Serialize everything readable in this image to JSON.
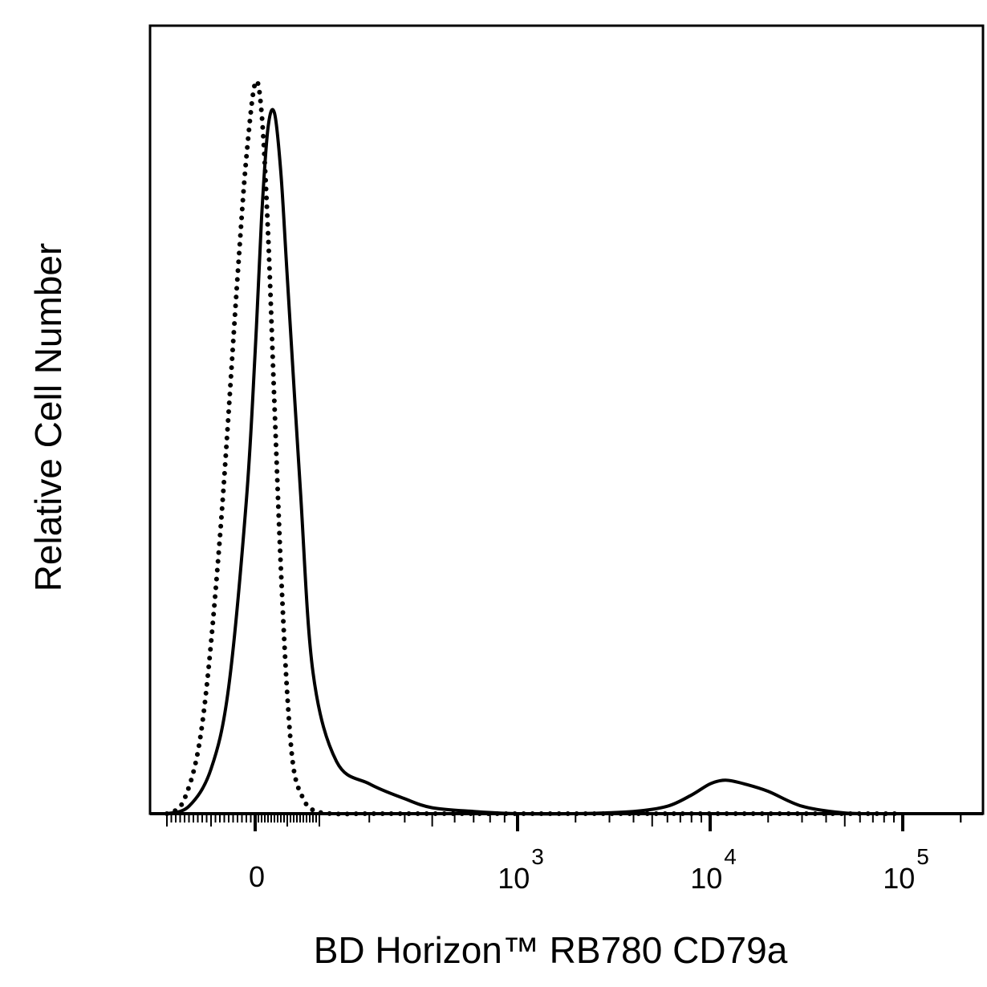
{
  "chart_data": {
    "type": "line",
    "title": "",
    "xlabel": "BD Horizon™ RB780 CD79a",
    "ylabel": "Relative Cell Number",
    "x_scale": "biexponential",
    "xlim": [
      -200,
      250000
    ],
    "ylim": [
      0,
      1
    ],
    "grid": false,
    "x_tick_labels": [
      {
        "value": 0,
        "base": "0",
        "exp": ""
      },
      {
        "value": 1000,
        "base": "10",
        "exp": "3"
      },
      {
        "value": 10000,
        "base": "10",
        "exp": "4"
      },
      {
        "value": 100000,
        "base": "10",
        "exp": "5"
      }
    ],
    "series": [
      {
        "style": "dotted",
        "color": "#000000",
        "x": [
          -200,
          -160,
          -120,
          -80,
          -40,
          -20,
          0,
          20,
          40,
          60,
          80,
          100,
          120,
          150,
          180,
          220,
          300,
          400,
          600,
          1000,
          10000,
          100000
        ],
        "y": [
          0.0,
          0.02,
          0.12,
          0.37,
          0.72,
          0.88,
          0.98,
          0.94,
          0.78,
          0.55,
          0.33,
          0.16,
          0.06,
          0.02,
          0.005,
          0.0,
          0.0,
          0.0,
          0.0,
          0.0,
          0.0,
          0.0
        ]
      },
      {
        "style": "solid",
        "color": "#000000",
        "x": [
          -200,
          -150,
          -100,
          -60,
          -20,
          0,
          20,
          40,
          60,
          80,
          100,
          140,
          180,
          230,
          300,
          400,
          500,
          700,
          1000,
          2000,
          4000,
          6000,
          8000,
          10000,
          12000,
          15000,
          20000,
          30000,
          50000,
          80000,
          100000,
          250000
        ],
        "y": [
          0.0,
          0.01,
          0.06,
          0.17,
          0.42,
          0.62,
          0.8,
          0.92,
          0.94,
          0.86,
          0.72,
          0.44,
          0.19,
          0.07,
          0.04,
          0.02,
          0.008,
          0.003,
          0.0,
          0.0,
          0.003,
          0.01,
          0.025,
          0.04,
          0.045,
          0.04,
          0.03,
          0.01,
          0.001,
          0.0,
          0.0,
          0.0
        ]
      }
    ]
  }
}
